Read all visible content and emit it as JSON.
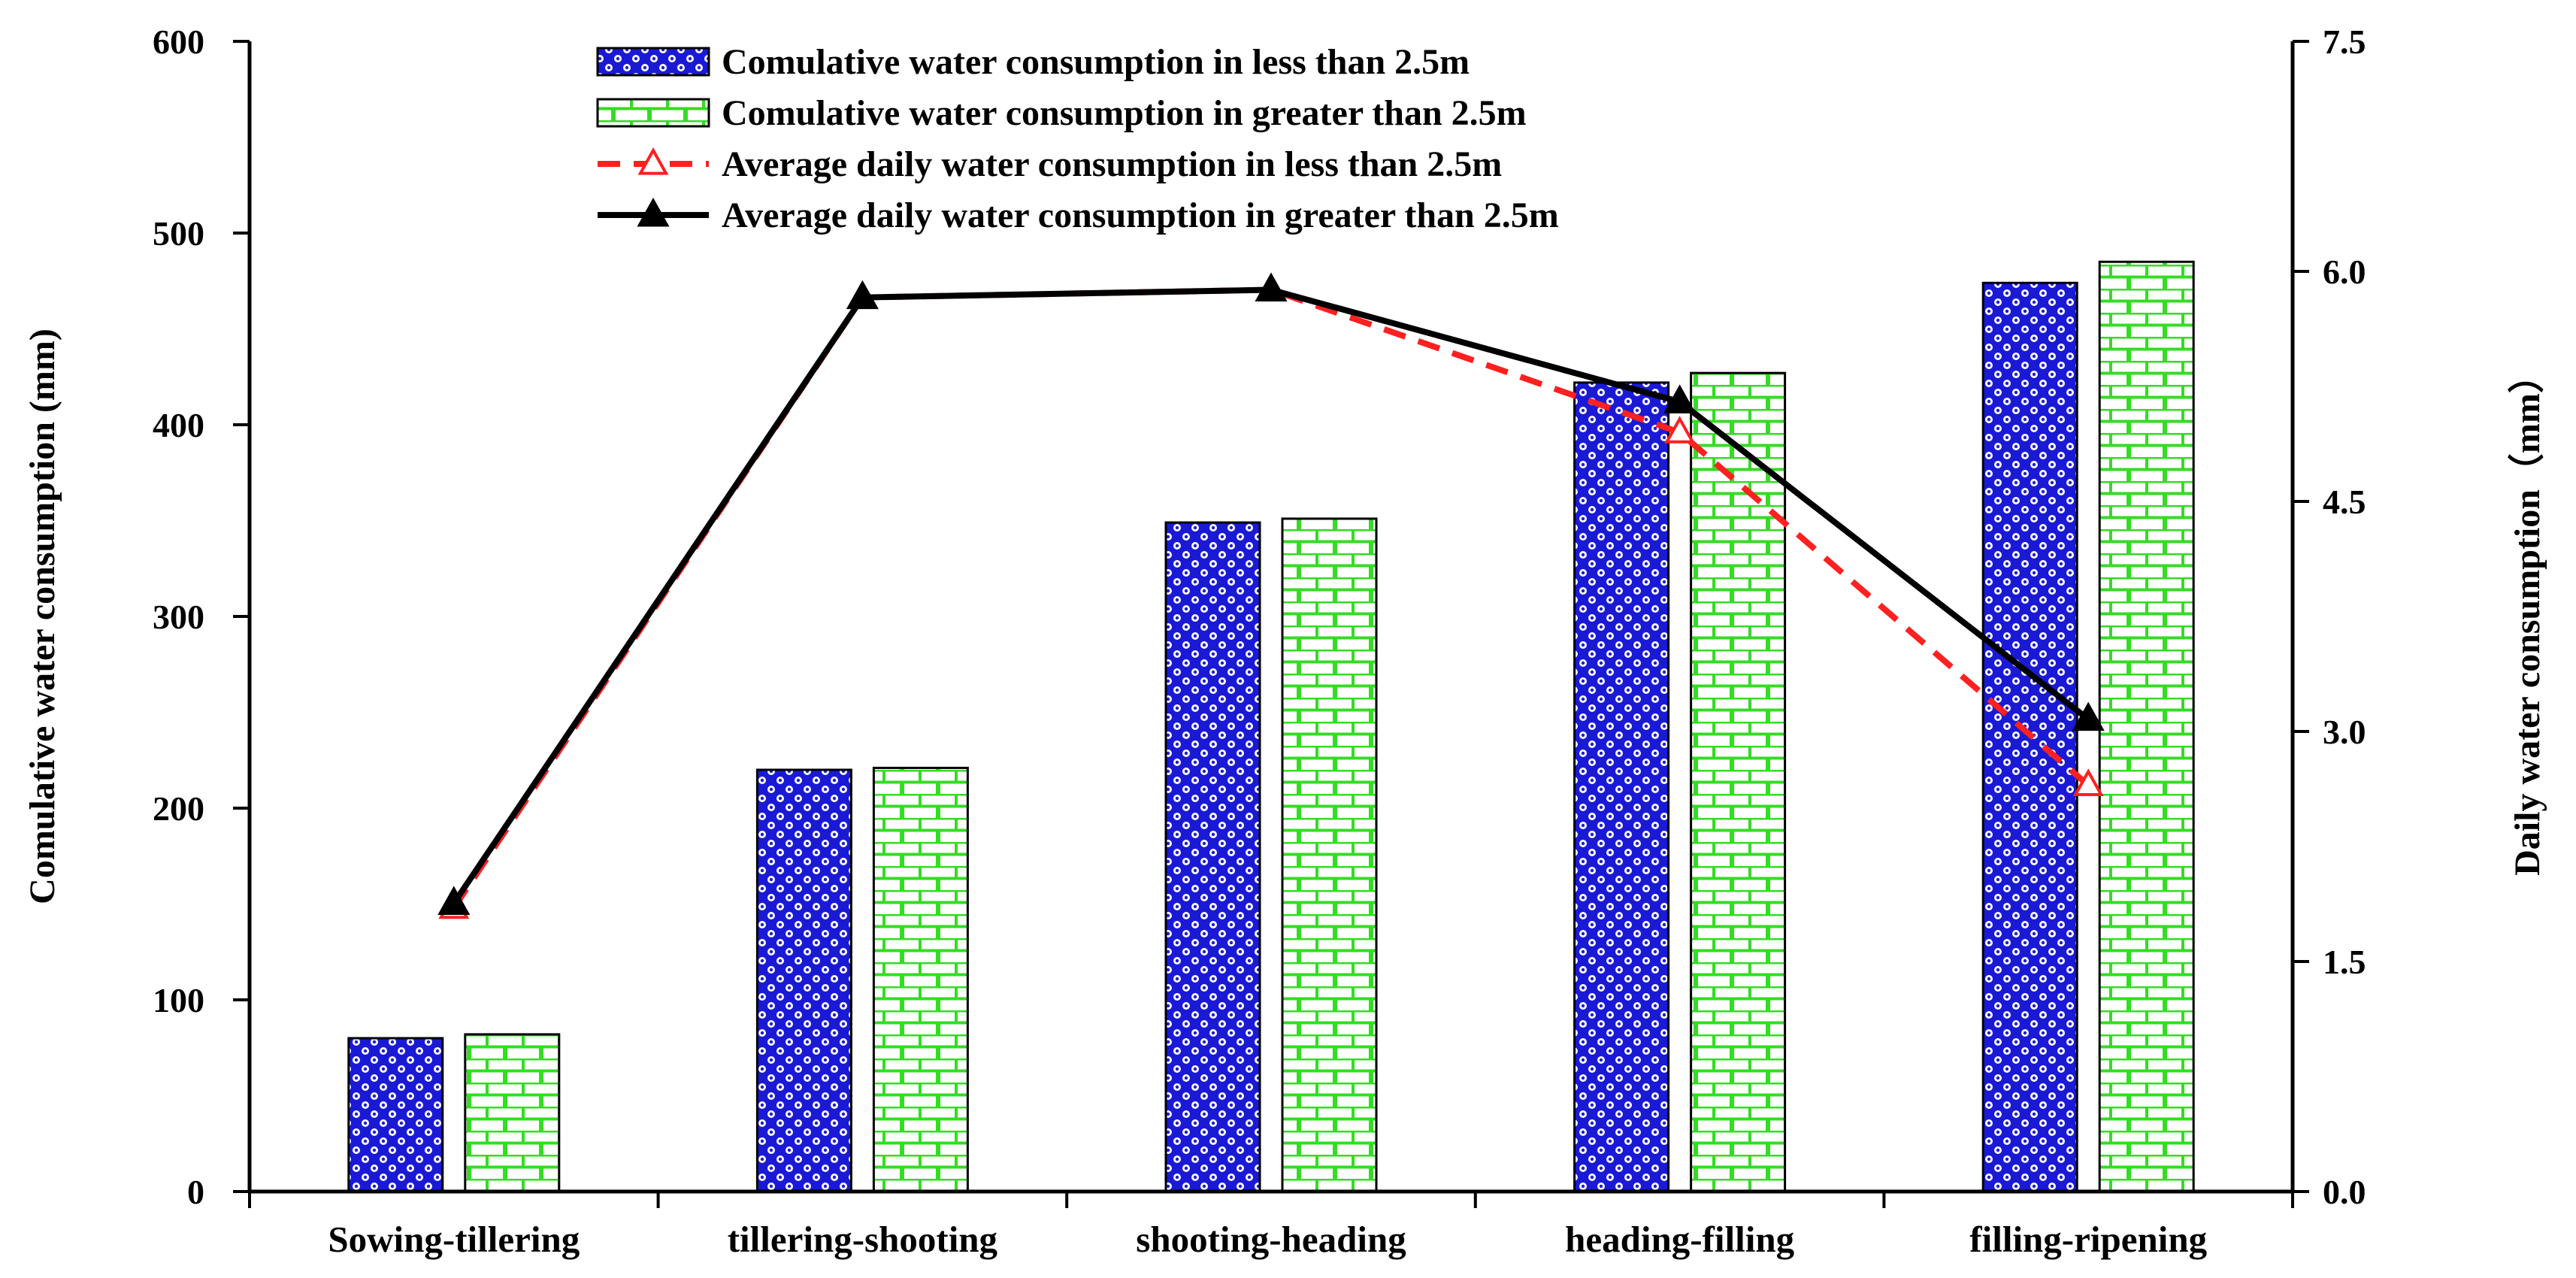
{
  "chart_data": {
    "type": "bar+line",
    "categories": [
      "Sowing-tillering",
      "tillering-shooting",
      "shooting-heading",
      "heading-filling",
      "filling-ripening"
    ],
    "series": [
      {
        "name": "Comulative water consumption in less than 2.5m",
        "kind": "bar",
        "axis": "left",
        "values": [
          80,
          220,
          349,
          422,
          474
        ]
      },
      {
        "name": "Comulative water consumption in greater than 2.5m",
        "kind": "bar",
        "axis": "left",
        "values": [
          82,
          221,
          351,
          427,
          485
        ]
      },
      {
        "name": "Average daily water consumption in less than 2.5m",
        "kind": "line",
        "axis": "right",
        "style": "dashed",
        "marker": "open-triangle",
        "values": [
          1.85,
          5.83,
          5.88,
          4.95,
          2.65
        ]
      },
      {
        "name": "Average daily water consumption in greater than 2.5m",
        "kind": "line",
        "axis": "right",
        "style": "solid",
        "marker": "filled-triangle",
        "values": [
          1.88,
          5.83,
          5.88,
          5.15,
          3.08
        ]
      }
    ],
    "ylabel": "Comulative water consumption (mm)",
    "y2label": "Daily water consumption（mm）",
    "ylim": [
      0,
      600
    ],
    "y2lim": [
      0,
      7.5
    ],
    "yticks": [
      "0",
      "100",
      "200",
      "300",
      "400",
      "500",
      "600"
    ],
    "y2ticks": [
      "0.0",
      "1.5",
      "3.0",
      "4.5",
      "6.0",
      "7.5"
    ],
    "legend_position": "top-center",
    "colors": {
      "bar_less": "#1a1ad6",
      "bar_less_dot": "#ffffff",
      "bar_greater_bg": "#ffffff",
      "bar_greater_line": "#33dd22",
      "line_less": "#ff2020",
      "line_greater": "#000000"
    }
  }
}
